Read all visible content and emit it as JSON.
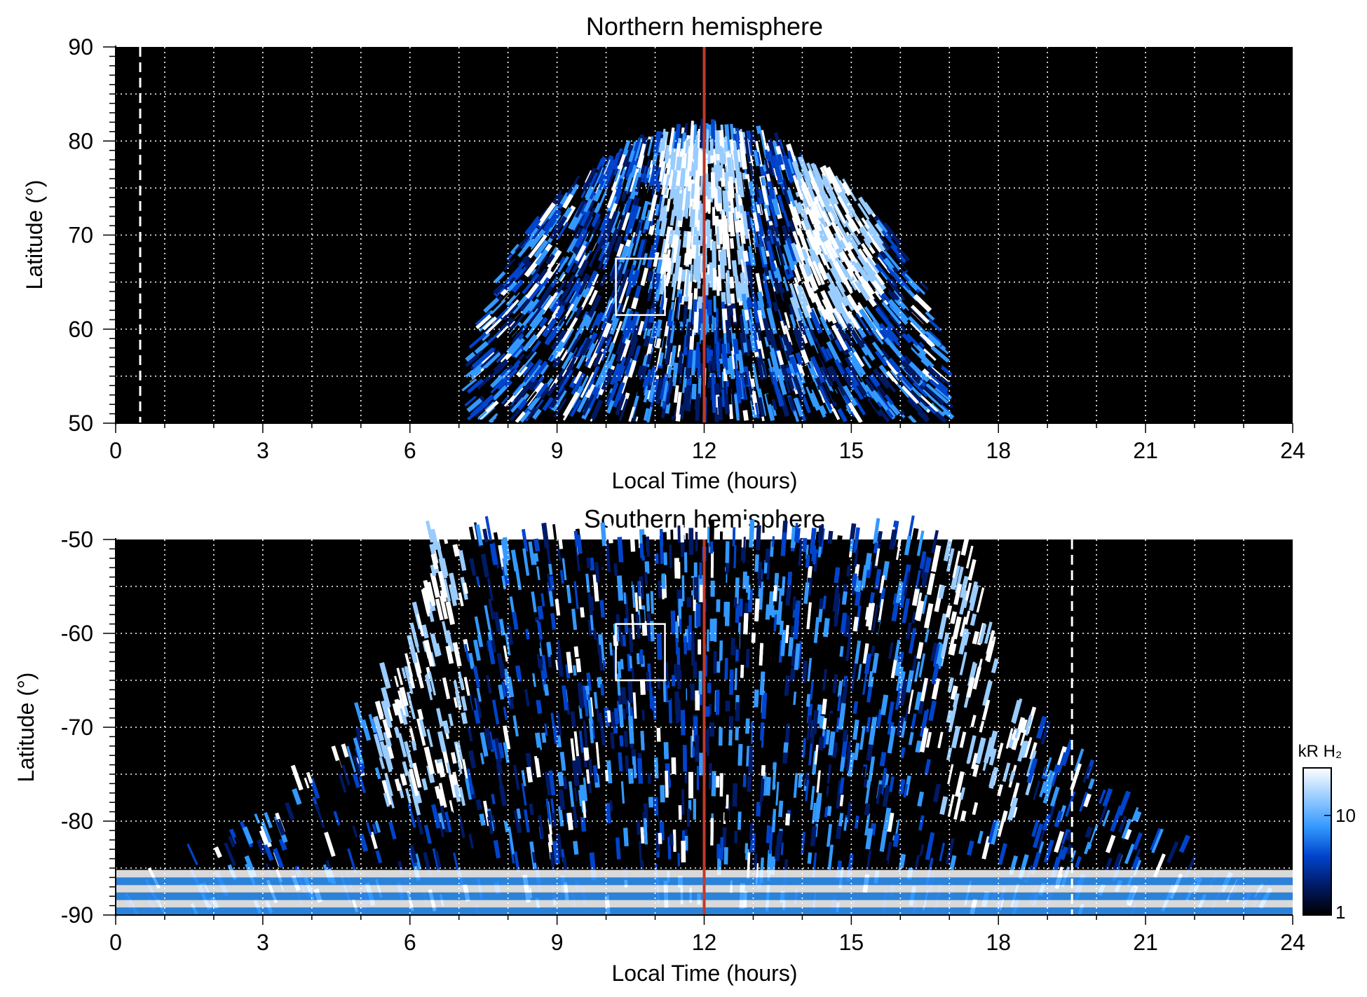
{
  "chart_data": [
    {
      "type": "heatmap",
      "title": "Northern hemisphere",
      "xlabel": "Local Time (hours)",
      "ylabel": "Latitude (°)",
      "xlim": [
        0,
        24
      ],
      "ylim": [
        50,
        90
      ],
      "xticks": [
        "0",
        "3",
        "6",
        "9",
        "12",
        "15",
        "18",
        "21",
        "24"
      ],
      "yticks": [
        "50",
        "60",
        "70",
        "80",
        "90"
      ],
      "grid": true,
      "noon_line_lt": 12,
      "dashed_line_lt": 0.5,
      "box": {
        "lt": [
          10.2,
          11.2
        ],
        "lat": [
          61.5,
          67.5
        ]
      },
      "coverage": {
        "lt_start": 7.0,
        "lt_end": 17.2,
        "lat_bottom": 50,
        "lat_top": 79.5
      },
      "bright_bands": [
        {
          "lt": 12.0,
          "lat": [
            62,
            79
          ],
          "intensity": "high"
        },
        {
          "lt": 14.8,
          "lat": [
            60,
            76
          ],
          "intensity": "high"
        }
      ]
    },
    {
      "type": "heatmap",
      "title": "Southern hemisphere",
      "xlabel": "Local Time (hours)",
      "ylabel": "Latitude (°)",
      "xlim": [
        0,
        24
      ],
      "ylim": [
        -90,
        -50
      ],
      "xticks": [
        "0",
        "3",
        "6",
        "9",
        "12",
        "15",
        "18",
        "21",
        "24"
      ],
      "yticks": [
        "-90",
        "-80",
        "-70",
        "-60",
        "-50"
      ],
      "grid": true,
      "noon_line_lt": 12,
      "dashed_line_lt": 19.5,
      "box": {
        "lt": [
          10.2,
          11.2
        ],
        "lat": [
          -65,
          -59
        ]
      },
      "coverage": {
        "lt_center": 11.9,
        "inner_half_width_top": 5.5,
        "outer_half_width_bottom": 12.0,
        "lat_top": -50,
        "lat_bottom": -90
      },
      "bright_bands": [
        {
          "lt": 6.3,
          "lat": [
            -80,
            -50
          ],
          "intensity": "high"
        },
        {
          "lt": 17.7,
          "lat": [
            -80,
            -50
          ],
          "intensity": "high"
        },
        {
          "lt": 12.0,
          "lat": [
            -90,
            -87
          ],
          "intensity": "high"
        }
      ]
    }
  ],
  "colorbar": {
    "label": "kR H₂",
    "ticks": [
      "1",
      "10"
    ],
    "scale": "log",
    "range": [
      1,
      30
    ],
    "colors": [
      "#000000",
      "#001a66",
      "#0044cc",
      "#3399ff",
      "#99ccff",
      "#ffffff"
    ]
  },
  "colors": {
    "background": "#000000",
    "noon_line": "#c0392b",
    "grid": "#ffffff"
  }
}
